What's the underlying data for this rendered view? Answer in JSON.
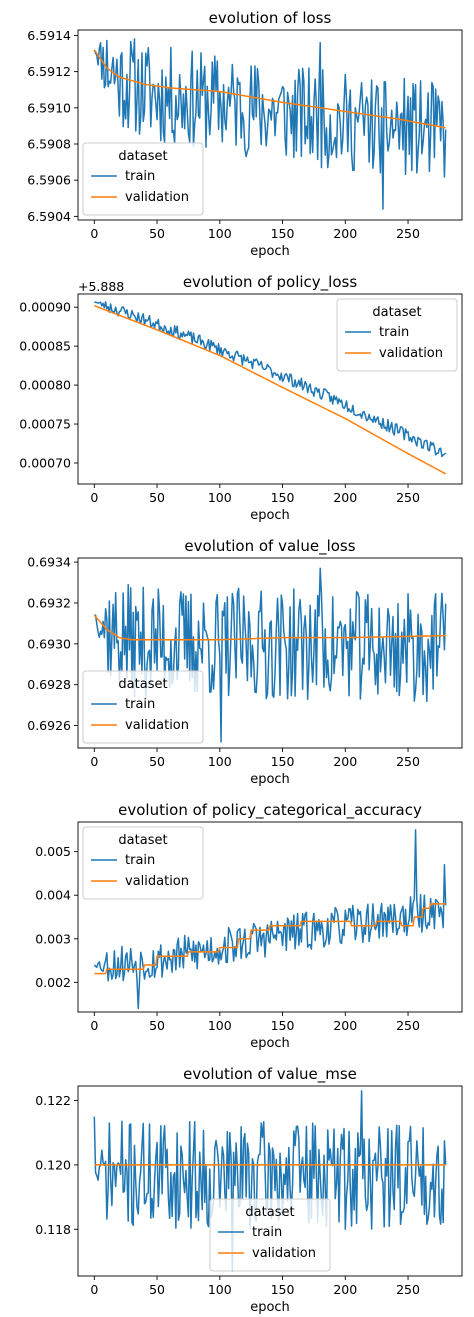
{
  "chart_data": [
    {
      "type": "line",
      "title": "evolution of loss",
      "xlabel": "epoch",
      "ylabel": "",
      "xlim": [
        -13,
        293
      ],
      "ylim": [
        6.59038,
        6.59143
      ],
      "xticks": [
        0,
        50,
        100,
        150,
        200,
        250
      ],
      "xtick_labels": [
        "0",
        "50",
        "100",
        "150",
        "200",
        "250"
      ],
      "yticks": [
        6.5904,
        6.5906,
        6.5908,
        6.591,
        6.5912,
        6.5914
      ],
      "ytick_labels": [
        "6.5904",
        "6.5906",
        "6.5908",
        "6.5910",
        "6.5912",
        "6.5914"
      ],
      "legend": {
        "title": "dataset",
        "placement": "lower-left"
      },
      "series": [
        {
          "name": "train",
          "color": "#1f77b4",
          "noisy": true,
          "noise_amp": 0.00055,
          "seed": 11,
          "spikes": [
            [
              180,
              6.59136
            ],
            [
              230,
              6.59044
            ]
          ],
          "keys": [
            [
              0,
              6.59132
            ],
            [
              20,
              6.59116
            ],
            [
              50,
              6.59107
            ],
            [
              100,
              6.59103
            ],
            [
              150,
              6.59097
            ],
            [
              200,
              6.59092
            ],
            [
              250,
              6.59089
            ],
            [
              280,
              6.59086
            ]
          ]
        },
        {
          "name": "validation",
          "color": "#ff7f0e",
          "noisy": false,
          "keys": [
            [
              0,
              6.59132
            ],
            [
              5,
              6.59127
            ],
            [
              10,
              6.59122
            ],
            [
              20,
              6.59117
            ],
            [
              40,
              6.59113
            ],
            [
              60,
              6.59111
            ],
            [
              100,
              6.59109
            ],
            [
              150,
              6.59103
            ],
            [
              200,
              6.59098
            ],
            [
              240,
              6.59094
            ],
            [
              280,
              6.59089
            ]
          ]
        }
      ]
    },
    {
      "type": "line",
      "title": "evolution of policy_loss",
      "xlabel": "epoch",
      "ylabel": "",
      "offset_text": "+5.888",
      "xlim": [
        -13,
        293
      ],
      "ylim": [
        0.000673,
        0.000917
      ],
      "xticks": [
        0,
        50,
        100,
        150,
        200,
        250
      ],
      "xtick_labels": [
        "0",
        "50",
        "100",
        "150",
        "200",
        "250"
      ],
      "yticks": [
        0.0007,
        0.00075,
        0.0008,
        0.00085,
        0.0009
      ],
      "ytick_labels": [
        "0.00070",
        "0.00075",
        "0.00080",
        "0.00085",
        "0.00090"
      ],
      "legend": {
        "title": "dataset",
        "placement": "upper-right"
      },
      "series": [
        {
          "name": "train",
          "color": "#1f77b4",
          "noisy": true,
          "noise_amp": 1.6e-05,
          "seed": 23,
          "spikes": [],
          "keys": [
            [
              0,
              0.000907
            ],
            [
              25,
              0.000893
            ],
            [
              50,
              0.000878
            ],
            [
              100,
              0.000846
            ],
            [
              150,
              0.000812
            ],
            [
              200,
              0.000775
            ],
            [
              250,
              0.000735
            ],
            [
              280,
              0.000712
            ]
          ]
        },
        {
          "name": "validation",
          "color": "#ff7f0e",
          "noisy": false,
          "keys": [
            [
              0,
              0.000902
            ],
            [
              50,
              0.000871
            ],
            [
              100,
              0.000838
            ],
            [
              150,
              0.000797
            ],
            [
              200,
              0.000757
            ],
            [
              250,
              0.000712
            ],
            [
              280,
              0.000686
            ]
          ]
        }
      ]
    },
    {
      "type": "line",
      "title": "evolution of value_loss",
      "xlabel": "epoch",
      "ylabel": "",
      "xlim": [
        -13,
        293
      ],
      "ylim": [
        0.69249,
        0.69342
      ],
      "xticks": [
        0,
        50,
        100,
        150,
        200,
        250
      ],
      "xtick_labels": [
        "0",
        "50",
        "100",
        "150",
        "200",
        "250"
      ],
      "yticks": [
        0.6926,
        0.6928,
        0.693,
        0.6932,
        0.6934
      ],
      "ytick_labels": [
        "0.6926",
        "0.6928",
        "0.6930",
        "0.6932",
        "0.6934"
      ],
      "legend": {
        "title": "dataset",
        "placement": "lower-left"
      },
      "series": [
        {
          "name": "train",
          "color": "#1f77b4",
          "noisy": true,
          "noise_amp": 0.00055,
          "seed": 37,
          "spikes": [
            [
              180,
              0.69337
            ],
            [
              101,
              0.69252
            ]
          ],
          "keys": [
            [
              0,
              0.69314
            ],
            [
              15,
              0.69305
            ],
            [
              30,
              0.69301
            ],
            [
              280,
              0.69298
            ]
          ]
        },
        {
          "name": "validation",
          "color": "#ff7f0e",
          "noisy": false,
          "keys": [
            [
              0,
              0.69314
            ],
            [
              10,
              0.69307
            ],
            [
              20,
              0.69303
            ],
            [
              30,
              0.69302
            ],
            [
              100,
              0.69302
            ],
            [
              150,
              0.69303
            ],
            [
              200,
              0.69303
            ],
            [
              280,
              0.69304
            ]
          ]
        }
      ]
    },
    {
      "type": "line",
      "title": "evolution of policy_categorical_accuracy",
      "xlabel": "epoch",
      "ylabel": "",
      "xlim": [
        -13,
        293
      ],
      "ylim": [
        0.00132,
        0.00568
      ],
      "xticks": [
        0,
        50,
        100,
        150,
        200,
        250
      ],
      "xtick_labels": [
        "0",
        "50",
        "100",
        "150",
        "200",
        "250"
      ],
      "yticks": [
        0.002,
        0.003,
        0.004,
        0.005
      ],
      "ytick_labels": [
        "0.002",
        "0.003",
        "0.004",
        "0.005"
      ],
      "legend": {
        "title": "dataset",
        "placement": "upper-left"
      },
      "series": [
        {
          "name": "train",
          "color": "#1f77b4",
          "noisy": true,
          "noise_amp": 0.0009,
          "seed": 53,
          "spikes": [
            [
              256,
              0.0055
            ],
            [
              279,
              0.0047
            ],
            [
              35,
              0.0014
            ]
          ],
          "keys": [
            [
              0,
              0.0024
            ],
            [
              50,
              0.0025
            ],
            [
              100,
              0.0028
            ],
            [
              150,
              0.0031
            ],
            [
              200,
              0.0033
            ],
            [
              250,
              0.0035
            ],
            [
              280,
              0.0037
            ]
          ]
        },
        {
          "name": "validation",
          "color": "#ff7f0e",
          "noisy": false,
          "step": true,
          "keys": [
            [
              0,
              0.0022
            ],
            [
              10,
              0.0023
            ],
            [
              40,
              0.0024
            ],
            [
              50,
              0.0026
            ],
            [
              75,
              0.0027
            ],
            [
              100,
              0.0028
            ],
            [
              115,
              0.003
            ],
            [
              125,
              0.0032
            ],
            [
              140,
              0.0033
            ],
            [
              165,
              0.0034
            ],
            [
              205,
              0.0033
            ],
            [
              225,
              0.0034
            ],
            [
              245,
              0.0033
            ],
            [
              255,
              0.0035
            ],
            [
              262,
              0.0037
            ],
            [
              268,
              0.0038
            ],
            [
              280,
              0.0038
            ]
          ]
        }
      ]
    },
    {
      "type": "line",
      "title": "evolution of value_mse",
      "xlabel": "epoch",
      "ylabel": "",
      "xlim": [
        -13,
        293
      ],
      "ylim": [
        0.11655,
        0.12245
      ],
      "xticks": [
        0,
        50,
        100,
        150,
        200,
        250
      ],
      "xtick_labels": [
        "0",
        "50",
        "100",
        "150",
        "200",
        "250"
      ],
      "yticks": [
        0.118,
        0.12,
        0.122
      ],
      "ytick_labels": [
        "0.118",
        "0.120",
        "0.122"
      ],
      "legend": {
        "title": "dataset",
        "placement": "lower-center"
      },
      "series": [
        {
          "name": "train",
          "color": "#1f77b4",
          "noisy": true,
          "noise_amp": 0.0034,
          "seed": 71,
          "spikes": [
            [
              213,
              0.1223
            ],
            [
              0,
              0.1215
            ],
            [
              110,
              0.1167
            ]
          ],
          "keys": [
            [
              0,
              0.1197
            ],
            [
              280,
              0.1197
            ]
          ]
        },
        {
          "name": "validation",
          "color": "#ff7f0e",
          "noisy": false,
          "keys": [
            [
              0,
              0.12
            ],
            [
              280,
              0.12
            ]
          ]
        }
      ]
    }
  ]
}
